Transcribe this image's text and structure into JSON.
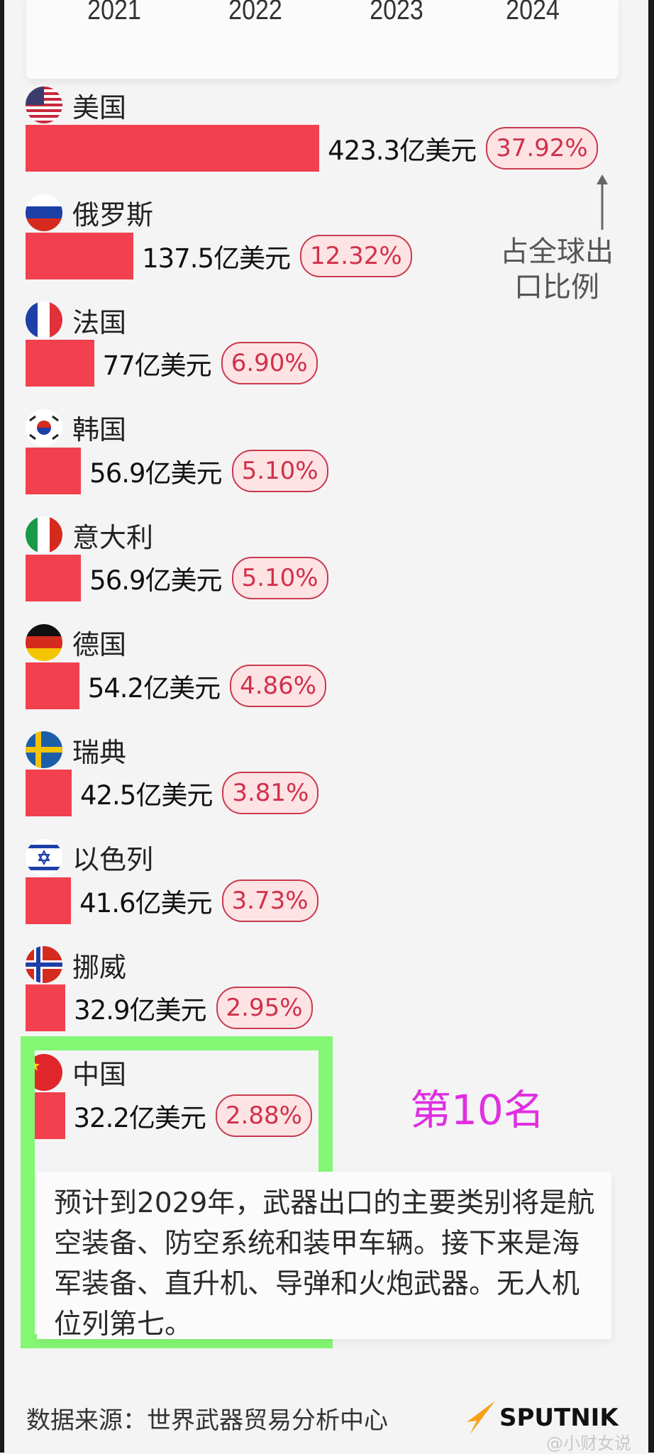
{
  "chart_data": {
    "type": "bar",
    "orientation": "horizontal",
    "unit": "亿美元",
    "categories": [
      "美国",
      "俄罗斯",
      "法国",
      "韩国",
      "意大利",
      "德国",
      "瑞典",
      "以色列",
      "挪威",
      "中国"
    ],
    "values": [
      423.3,
      137.5,
      77,
      56.9,
      56.9,
      54.2,
      42.5,
      41.6,
      32.9,
      32.2
    ],
    "value_labels": [
      "423.3亿美元",
      "137.5亿美元",
      "77亿美元",
      "56.9亿美元",
      "56.9亿美元",
      "54.2亿美元",
      "42.5亿美元",
      "41.6亿美元",
      "32.9亿美元",
      "32.2亿美元"
    ],
    "share_labels": [
      "37.92%",
      "12.32%",
      "6.90%",
      "5.10%",
      "5.10%",
      "4.86%",
      "3.81%",
      "3.73%",
      "2.95%",
      "2.88%"
    ],
    "flags": [
      "us-flag",
      "russia-flag",
      "france-flag",
      "south-korea-flag",
      "italy-flag",
      "germany-flag",
      "sweden-flag",
      "israel-flag",
      "norway-flag",
      "china-flag"
    ],
    "bar_color": "#f2404f",
    "annotation": "占全球出口比例"
  },
  "top_years": [
    "2021",
    "2022",
    "2023",
    "2024"
  ],
  "highlight": {
    "label": "第10名",
    "color": "#e02fe0",
    "frame_color": "#84f774"
  },
  "note": "预计到2029年，武器出口的主要类别将是航空装备、防空系统和装甲车辆。接下来是海军装备、直升机、导弹和火炮武器。无人机位列第七。",
  "footer": {
    "source": "数据来源：世界武器贸易分析中心",
    "logo": "SPUTNIK",
    "watermark": "@小财女说"
  }
}
